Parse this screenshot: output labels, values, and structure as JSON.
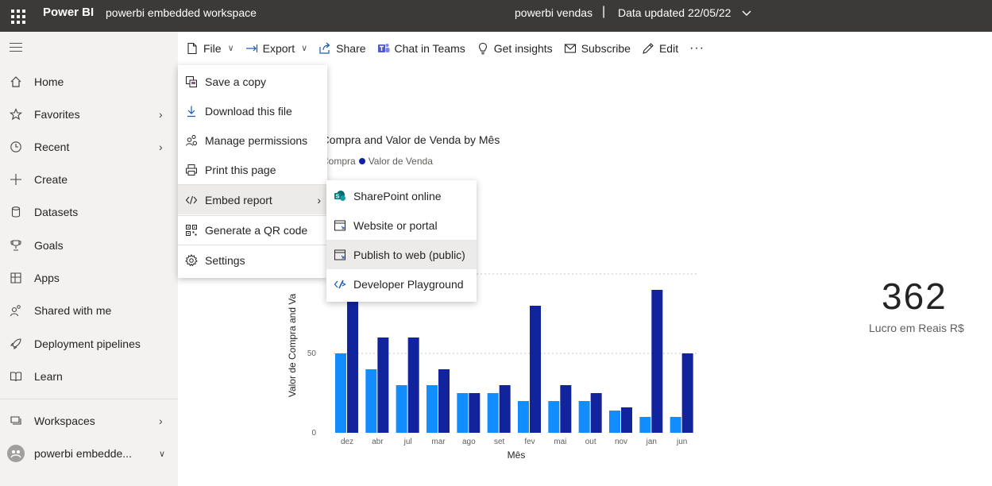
{
  "topbar": {
    "brand": "Power BI",
    "workspace": "powerbi embedded workspace",
    "report": "powerbi vendas",
    "separator": "|",
    "updated": "Data updated 22/05/22"
  },
  "sidebar": {
    "items": [
      {
        "label": "Home",
        "icon": "home-icon"
      },
      {
        "label": "Favorites",
        "icon": "star-icon"
      },
      {
        "label": "Recent",
        "icon": "clock-icon"
      },
      {
        "label": "Create",
        "icon": "plus-icon"
      },
      {
        "label": "Datasets",
        "icon": "database-icon"
      },
      {
        "label": "Goals",
        "icon": "trophy-icon"
      },
      {
        "label": "Apps",
        "icon": "apps-icon"
      },
      {
        "label": "Shared with me",
        "icon": "shared-icon"
      },
      {
        "label": "Deployment pipelines",
        "icon": "rocket-icon"
      },
      {
        "label": "Learn",
        "icon": "book-icon"
      },
      {
        "label": "Workspaces",
        "icon": "workspaces-icon"
      },
      {
        "label": "powerbi embedde...",
        "icon": "workspace-avatar-icon"
      }
    ]
  },
  "toolbar": {
    "file": "File",
    "export": "Export",
    "share": "Share",
    "chat": "Chat in Teams",
    "insights": "Get insights",
    "subscribe": "Subscribe",
    "edit": "Edit",
    "more": "···"
  },
  "file_menu": {
    "items": [
      {
        "label": "Save a copy",
        "icon": "save-copy-icon"
      },
      {
        "label": "Download this file",
        "icon": "download-icon"
      },
      {
        "label": "Manage permissions",
        "icon": "permissions-icon"
      },
      {
        "label": "Print this page",
        "icon": "print-icon"
      },
      {
        "label": "Embed report",
        "icon": "embed-code-icon"
      },
      {
        "label": "Generate a QR code",
        "icon": "qr-code-icon"
      },
      {
        "label": "Settings",
        "icon": "settings-icon"
      }
    ]
  },
  "embed_menu": {
    "items": [
      {
        "label": "SharePoint online",
        "icon": "sharepoint-icon"
      },
      {
        "label": "Website or portal",
        "icon": "website-icon"
      },
      {
        "label": "Publish to web (public)",
        "icon": "publish-web-icon"
      },
      {
        "label": "Developer Playground",
        "icon": "developer-icon"
      }
    ]
  },
  "chart": {
    "title_visible": "e Compra and Valor de Venda by Mês",
    "legend_compra": "e Compra",
    "legend_venda": "Valor de Venda",
    "ylabel_visible": "Valor de Compra and Va",
    "xlabel": "Mês"
  },
  "kpi": {
    "value": "362",
    "label": "Lucro em Reais R$"
  },
  "colors": {
    "compra": "#118dff",
    "venda": "#12239e"
  },
  "chart_data": {
    "type": "bar",
    "title": "e Compra and Valor de Venda by Mês",
    "xlabel": "Mês",
    "ylabel": "Valor de Compra and Va",
    "categories": [
      "dez",
      "abr",
      "jul",
      "mar",
      "ago",
      "set",
      "fev",
      "mai",
      "out",
      "nov",
      "jan",
      "jun"
    ],
    "series": [
      {
        "name": "e Compra",
        "values": [
          50,
          40,
          30,
          30,
          25,
          25,
          20,
          20,
          20,
          14,
          10,
          10
        ]
      },
      {
        "name": "Valor de Venda",
        "values": [
          100,
          60,
          60,
          40,
          25,
          30,
          80,
          30,
          25,
          16,
          90,
          50
        ]
      }
    ],
    "yticks": [
      0,
      50
    ],
    "ylim": [
      0,
      150
    ],
    "grid": true,
    "legend": "top-left"
  }
}
